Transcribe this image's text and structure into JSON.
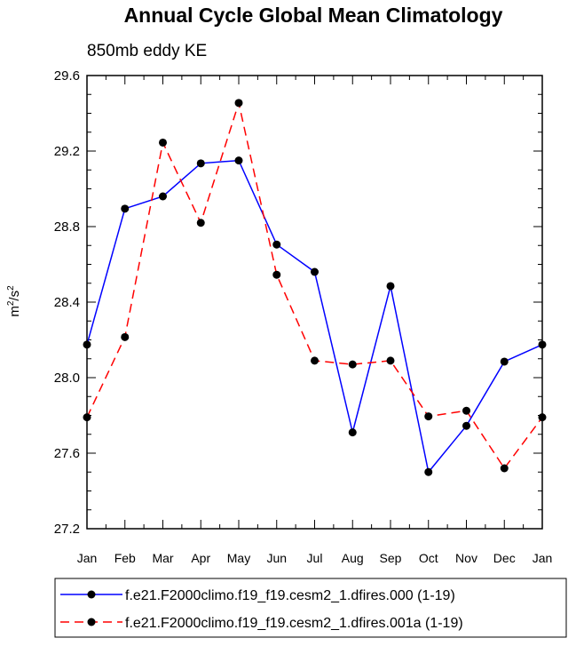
{
  "chart_data": {
    "type": "line",
    "title": "Annual Cycle Global Mean Climatology",
    "subtitle": "850mb eddy KE",
    "ylabel_base": "m",
    "ylabel_sup1": "2",
    "ylabel_mid": "/s",
    "ylabel_sup2": "2",
    "categories": [
      "Jan",
      "Feb",
      "Mar",
      "Apr",
      "May",
      "Jun",
      "Jul",
      "Aug",
      "Sep",
      "Oct",
      "Nov",
      "Dec",
      "Jan"
    ],
    "ylim": [
      27.2,
      29.6
    ],
    "yticks": [
      27.2,
      27.6,
      28.0,
      28.4,
      28.8,
      29.2,
      29.6
    ],
    "ytick_labels": [
      "27.2",
      "27.6",
      "28.0",
      "28.4",
      "28.8",
      "29.2",
      "29.6"
    ],
    "series": [
      {
        "name": "f.e21.F2000climo.f19_f19.cesm2_1.dfires.000 (1-19)",
        "color": "#0000ff",
        "dash": "solid",
        "values": [
          28.175,
          28.895,
          28.96,
          29.135,
          29.15,
          28.705,
          28.56,
          27.71,
          28.485,
          27.5,
          27.745,
          28.085,
          28.175
        ]
      },
      {
        "name": "f.e21.F2000climo.f19_f19.cesm2_1.dfires.001a (1-19)",
        "color": "#ff0000",
        "dash": "dashed",
        "values": [
          27.79,
          28.215,
          29.245,
          28.82,
          29.455,
          28.545,
          28.09,
          28.07,
          28.09,
          27.795,
          27.825,
          27.52,
          27.79
        ]
      }
    ],
    "legend_position": "bottom"
  }
}
